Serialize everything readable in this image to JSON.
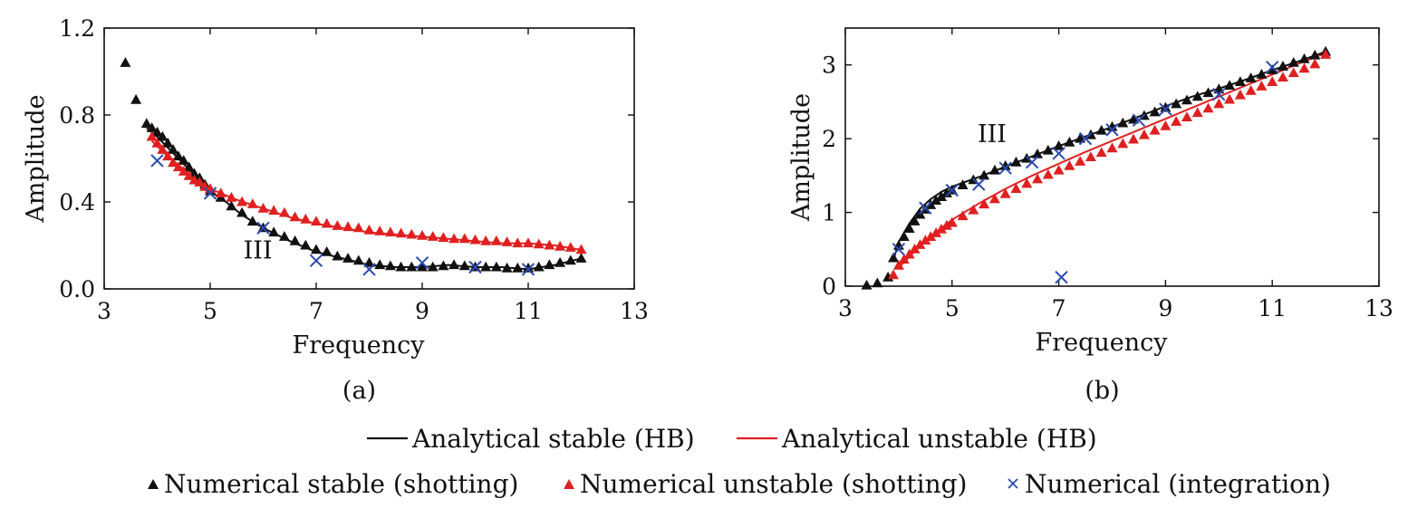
{
  "legend": {
    "row1": [
      {
        "label": "Analytical stable (HB)",
        "color": "#111111",
        "marker": "line"
      },
      {
        "label": "Analytical unstable (HB)",
        "color": "#e02020",
        "marker": "line"
      }
    ],
    "row2": [
      {
        "label": "Numerical stable (shotting)",
        "color": "#111111",
        "marker": "triangle"
      },
      {
        "label": "Numerical unstable (shotting)",
        "color": "#e02020",
        "marker": "triangle"
      },
      {
        "label": "Numerical (integration)",
        "color": "#2b4bb0",
        "marker": "cross"
      }
    ]
  },
  "chart_data": [
    {
      "type": "scatter",
      "panel_label": "(a)",
      "xlabel": "Frequency",
      "ylabel": "Amplitude",
      "xlim": [
        3,
        13
      ],
      "ylim": [
        0,
        1.2
      ],
      "xticks": [
        3,
        5,
        7,
        9,
        11,
        13
      ],
      "yticks": [
        0.0,
        0.4,
        0.8,
        1.2
      ],
      "xtick_labels": [
        "3",
        "5",
        "7",
        "9",
        "11",
        "13"
      ],
      "ytick_labels": [
        "0.0",
        "0.4",
        "0.8",
        "1.2"
      ],
      "grid": false,
      "annotation": {
        "text": "III",
        "x": 5.9,
        "y": 0.14
      },
      "series": [
        {
          "name": "Analytical stable (HB)",
          "kind": "line",
          "color": "#111111",
          "x": [
            3.8,
            4.0,
            4.2,
            4.4,
            4.6,
            4.8,
            5.0,
            5.3,
            5.6,
            6.0,
            6.5,
            7.0,
            7.5,
            8.0,
            8.5,
            9.0,
            9.5,
            10.0,
            10.5,
            11.0,
            11.5,
            12.0
          ],
          "y": [
            0.74,
            0.7,
            0.65,
            0.6,
            0.55,
            0.5,
            0.45,
            0.4,
            0.34,
            0.28,
            0.22,
            0.17,
            0.14,
            0.11,
            0.1,
            0.1,
            0.11,
            0.1,
            0.1,
            0.09,
            0.11,
            0.14
          ]
        },
        {
          "name": "Analytical unstable (HB)",
          "kind": "line",
          "color": "#e02020",
          "x": [
            3.9,
            4.2,
            4.5,
            5.0,
            5.5,
            6.0,
            6.5,
            7.0,
            7.5,
            8.0,
            8.5,
            9.0,
            9.5,
            10.0,
            10.5,
            11.0,
            11.5,
            12.0
          ],
          "y": [
            0.68,
            0.61,
            0.55,
            0.46,
            0.41,
            0.37,
            0.33,
            0.3,
            0.28,
            0.26,
            0.25,
            0.24,
            0.23,
            0.22,
            0.21,
            0.21,
            0.2,
            0.18
          ]
        },
        {
          "name": "Numerical stable (shotting)",
          "kind": "triangle",
          "color": "#111111",
          "x": [
            3.4,
            3.6,
            3.8,
            3.9,
            4.0,
            4.1,
            4.2,
            4.3,
            4.4,
            4.5,
            4.6,
            4.7,
            4.8,
            4.9,
            5.0,
            5.2,
            5.4,
            5.6,
            5.8,
            6.0,
            6.2,
            6.4,
            6.6,
            6.8,
            7.0,
            7.2,
            7.4,
            7.6,
            7.8,
            8.0,
            8.2,
            8.4,
            8.6,
            8.8,
            9.0,
            9.2,
            9.4,
            9.6,
            9.8,
            10.0,
            10.2,
            10.4,
            10.6,
            10.8,
            11.0,
            11.2,
            11.4,
            11.6,
            11.8,
            12.0
          ],
          "y": [
            1.04,
            0.87,
            0.76,
            0.74,
            0.72,
            0.7,
            0.67,
            0.64,
            0.61,
            0.59,
            0.56,
            0.53,
            0.51,
            0.48,
            0.45,
            0.42,
            0.38,
            0.35,
            0.31,
            0.28,
            0.26,
            0.24,
            0.22,
            0.2,
            0.18,
            0.17,
            0.15,
            0.14,
            0.13,
            0.12,
            0.11,
            0.105,
            0.1,
            0.1,
            0.1,
            0.1,
            0.105,
            0.11,
            0.105,
            0.1,
            0.1,
            0.1,
            0.095,
            0.095,
            0.095,
            0.1,
            0.11,
            0.12,
            0.13,
            0.14
          ]
        },
        {
          "name": "Numerical unstable (shotting)",
          "kind": "triangle",
          "color": "#e02020",
          "x": [
            3.9,
            4.0,
            4.1,
            4.2,
            4.3,
            4.4,
            4.5,
            4.6,
            4.7,
            4.8,
            4.9,
            5.0,
            5.2,
            5.4,
            5.6,
            5.8,
            6.0,
            6.2,
            6.4,
            6.6,
            6.8,
            7.0,
            7.2,
            7.4,
            7.6,
            7.8,
            8.0,
            8.2,
            8.4,
            8.6,
            8.8,
            9.0,
            9.2,
            9.4,
            9.6,
            9.8,
            10.0,
            10.2,
            10.4,
            10.6,
            10.8,
            11.0,
            11.2,
            11.4,
            11.6,
            11.8,
            12.0
          ],
          "y": [
            0.7,
            0.67,
            0.64,
            0.61,
            0.58,
            0.56,
            0.54,
            0.52,
            0.5,
            0.49,
            0.47,
            0.46,
            0.44,
            0.42,
            0.4,
            0.39,
            0.37,
            0.36,
            0.35,
            0.33,
            0.32,
            0.31,
            0.3,
            0.29,
            0.285,
            0.28,
            0.27,
            0.265,
            0.26,
            0.255,
            0.25,
            0.245,
            0.24,
            0.235,
            0.23,
            0.23,
            0.225,
            0.22,
            0.22,
            0.215,
            0.21,
            0.21,
            0.205,
            0.2,
            0.195,
            0.19,
            0.18
          ]
        },
        {
          "name": "Numerical (integration)",
          "kind": "cross",
          "color": "#2b4bb0",
          "x": [
            4.0,
            5.0,
            6.0,
            7.0,
            8.0,
            9.0,
            10.0,
            11.0
          ],
          "y": [
            0.59,
            0.44,
            0.28,
            0.13,
            0.09,
            0.12,
            0.1,
            0.09
          ]
        }
      ]
    },
    {
      "type": "scatter",
      "panel_label": "(b)",
      "xlabel": "Frequency",
      "ylabel": "Amplitude",
      "xlim": [
        3,
        13
      ],
      "ylim": [
        0,
        3.5
      ],
      "xticks": [
        3,
        5,
        7,
        9,
        11,
        13
      ],
      "yticks": [
        0,
        1,
        2,
        3
      ],
      "xtick_labels": [
        "3",
        "5",
        "7",
        "9",
        "11",
        "13"
      ],
      "ytick_labels": [
        "0",
        "1",
        "2",
        "3"
      ],
      "grid": false,
      "annotation": {
        "text": "III",
        "x": 5.75,
        "y": 1.95
      },
      "series": [
        {
          "name": "Analytical stable (HB)",
          "kind": "line",
          "color": "#111111",
          "x": [
            3.9,
            4.0,
            4.2,
            4.4,
            4.6,
            4.8,
            5.0,
            5.5,
            6.0,
            6.5,
            7.0,
            7.5,
            8.0,
            8.5,
            9.0,
            9.5,
            10.0,
            10.5,
            11.0,
            11.5,
            12.0
          ],
          "y": [
            0.35,
            0.6,
            0.85,
            1.05,
            1.18,
            1.28,
            1.35,
            1.48,
            1.62,
            1.76,
            1.9,
            2.03,
            2.16,
            2.3,
            2.44,
            2.57,
            2.68,
            2.8,
            2.93,
            3.05,
            3.18
          ]
        },
        {
          "name": "Analytical unstable (HB)",
          "kind": "line",
          "color": "#e02020",
          "x": [
            4.0,
            4.2,
            4.5,
            5.0,
            5.5,
            6.0,
            6.5,
            7.0,
            7.5,
            8.0,
            8.5,
            9.0,
            9.5,
            10.0,
            10.5,
            11.0,
            11.5,
            12.0
          ],
          "y": [
            0.25,
            0.4,
            0.62,
            0.9,
            1.12,
            1.32,
            1.5,
            1.66,
            1.82,
            1.97,
            2.12,
            2.27,
            2.42,
            2.57,
            2.72,
            2.87,
            3.02,
            3.16
          ]
        },
        {
          "name": "Numerical stable (shotting)",
          "kind": "triangle",
          "color": "#111111",
          "x": [
            3.4,
            3.6,
            3.8,
            3.9,
            4.0,
            4.1,
            4.2,
            4.3,
            4.4,
            4.5,
            4.6,
            4.7,
            4.8,
            4.9,
            5.0,
            5.2,
            5.4,
            5.6,
            5.8,
            6.0,
            6.2,
            6.4,
            6.6,
            6.8,
            7.0,
            7.2,
            7.4,
            7.6,
            7.8,
            8.0,
            8.2,
            8.4,
            8.6,
            8.8,
            9.0,
            9.2,
            9.4,
            9.6,
            9.8,
            10.0,
            10.2,
            10.4,
            10.6,
            10.8,
            11.0,
            11.2,
            11.4,
            11.6,
            11.8,
            12.0
          ],
          "y": [
            0.01,
            0.04,
            0.12,
            0.38,
            0.55,
            0.67,
            0.78,
            0.88,
            0.97,
            1.04,
            1.1,
            1.16,
            1.21,
            1.26,
            1.3,
            1.37,
            1.44,
            1.5,
            1.57,
            1.63,
            1.68,
            1.73,
            1.79,
            1.84,
            1.9,
            1.95,
            2.0,
            2.05,
            2.11,
            2.16,
            2.21,
            2.26,
            2.31,
            2.36,
            2.42,
            2.47,
            2.52,
            2.57,
            2.62,
            2.67,
            2.72,
            2.77,
            2.82,
            2.87,
            2.93,
            2.98,
            3.03,
            3.08,
            3.13,
            3.18
          ]
        },
        {
          "name": "Numerical unstable (shotting)",
          "kind": "triangle",
          "color": "#e02020",
          "x": [
            3.9,
            4.0,
            4.1,
            4.2,
            4.3,
            4.4,
            4.5,
            4.6,
            4.7,
            4.8,
            4.9,
            5.0,
            5.2,
            5.4,
            5.6,
            5.8,
            6.0,
            6.2,
            6.4,
            6.6,
            6.8,
            7.0,
            7.2,
            7.4,
            7.6,
            7.8,
            8.0,
            8.2,
            8.4,
            8.6,
            8.8,
            9.0,
            9.2,
            9.4,
            9.6,
            9.8,
            10.0,
            10.2,
            10.4,
            10.6,
            10.8,
            11.0,
            11.2,
            11.4,
            11.6,
            11.8,
            12.0
          ],
          "y": [
            0.15,
            0.28,
            0.36,
            0.43,
            0.5,
            0.56,
            0.62,
            0.67,
            0.72,
            0.77,
            0.82,
            0.86,
            0.95,
            1.03,
            1.11,
            1.18,
            1.25,
            1.32,
            1.39,
            1.45,
            1.51,
            1.57,
            1.63,
            1.69,
            1.75,
            1.81,
            1.87,
            1.93,
            1.99,
            2.05,
            2.11,
            2.17,
            2.23,
            2.29,
            2.35,
            2.41,
            2.47,
            2.53,
            2.59,
            2.65,
            2.71,
            2.77,
            2.83,
            2.89,
            2.95,
            3.01,
            3.14
          ]
        },
        {
          "name": "Numerical (integration)",
          "kind": "cross",
          "color": "#2b4bb0",
          "x": [
            4.0,
            4.5,
            5.0,
            5.5,
            6.0,
            6.5,
            7.0,
            7.05,
            7.5,
            8.0,
            8.5,
            9.0,
            10.0,
            11.0
          ],
          "y": [
            0.5,
            1.06,
            1.3,
            1.38,
            1.6,
            1.68,
            1.8,
            0.12,
            2.0,
            2.12,
            2.25,
            2.4,
            2.6,
            2.97
          ]
        }
      ]
    }
  ]
}
